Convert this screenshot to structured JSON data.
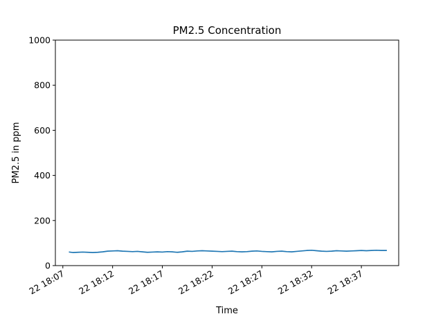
{
  "chart_data": {
    "type": "line",
    "title": "PM2.5 Concentration",
    "xlabel": "Time",
    "ylabel": "PM2.5 in ppm",
    "ylim": [
      0,
      1000
    ],
    "xlim": [
      "22 18:06:15",
      "22 18:40:45"
    ],
    "yticks": [
      0,
      200,
      400,
      600,
      800,
      1000
    ],
    "xticks": [
      {
        "label": "22 18:07",
        "t": "22 18:07:00"
      },
      {
        "label": "22 18:12",
        "t": "22 18:12:00"
      },
      {
        "label": "22 18:17",
        "t": "22 18:17:00"
      },
      {
        "label": "22 18:22",
        "t": "22 18:22:00"
      },
      {
        "label": "22 18:27",
        "t": "22 18:27:00"
      },
      {
        "label": "22 18:32",
        "t": "22 18:32:00"
      },
      {
        "label": "22 18:37",
        "t": "22 18:37:00"
      }
    ],
    "grid": false,
    "series": [
      {
        "color": "#1f77b4",
        "points": [
          [
            "22 18:07:40",
            60
          ],
          [
            "22 18:08:00",
            58
          ],
          [
            "22 18:08:30",
            59
          ],
          [
            "22 18:09:00",
            60
          ],
          [
            "22 18:09:30",
            59
          ],
          [
            "22 18:10:00",
            58
          ],
          [
            "22 18:10:30",
            59
          ],
          [
            "22 18:11:00",
            61
          ],
          [
            "22 18:11:30",
            64
          ],
          [
            "22 18:12:00",
            65
          ],
          [
            "22 18:12:30",
            66
          ],
          [
            "22 18:13:00",
            64
          ],
          [
            "22 18:13:30",
            63
          ],
          [
            "22 18:14:00",
            62
          ],
          [
            "22 18:14:30",
            63
          ],
          [
            "22 18:15:00",
            61
          ],
          [
            "22 18:15:30",
            59
          ],
          [
            "22 18:16:00",
            60
          ],
          [
            "22 18:16:30",
            61
          ],
          [
            "22 18:17:00",
            60
          ],
          [
            "22 18:17:30",
            62
          ],
          [
            "22 18:18:00",
            61
          ],
          [
            "22 18:18:30",
            59
          ],
          [
            "22 18:19:00",
            61
          ],
          [
            "22 18:19:30",
            64
          ],
          [
            "22 18:20:00",
            63
          ],
          [
            "22 18:20:30",
            65
          ],
          [
            "22 18:21:00",
            66
          ],
          [
            "22 18:21:30",
            65
          ],
          [
            "22 18:22:00",
            64
          ],
          [
            "22 18:22:30",
            63
          ],
          [
            "22 18:23:00",
            62
          ],
          [
            "22 18:23:30",
            63
          ],
          [
            "22 18:24:00",
            64
          ],
          [
            "22 18:24:30",
            62
          ],
          [
            "22 18:25:00",
            61
          ],
          [
            "22 18:25:30",
            62
          ],
          [
            "22 18:26:00",
            64
          ],
          [
            "22 18:26:30",
            65
          ],
          [
            "22 18:27:00",
            63
          ],
          [
            "22 18:27:30",
            62
          ],
          [
            "22 18:28:00",
            61
          ],
          [
            "22 18:28:30",
            63
          ],
          [
            "22 18:29:00",
            64
          ],
          [
            "22 18:29:30",
            62
          ],
          [
            "22 18:30:00",
            61
          ],
          [
            "22 18:30:30",
            63
          ],
          [
            "22 18:31:00",
            65
          ],
          [
            "22 18:31:30",
            67
          ],
          [
            "22 18:32:00",
            68
          ],
          [
            "22 18:32:30",
            66
          ],
          [
            "22 18:33:00",
            64
          ],
          [
            "22 18:33:30",
            63
          ],
          [
            "22 18:34:00",
            64
          ],
          [
            "22 18:34:30",
            66
          ],
          [
            "22 18:35:00",
            65
          ],
          [
            "22 18:35:30",
            64
          ],
          [
            "22 18:36:00",
            65
          ],
          [
            "22 18:36:30",
            66
          ],
          [
            "22 18:37:00",
            67
          ],
          [
            "22 18:37:30",
            66
          ],
          [
            "22 18:38:00",
            67
          ],
          [
            "22 18:38:30",
            68
          ],
          [
            "22 18:39:00",
            67
          ],
          [
            "22 18:39:30",
            67
          ]
        ]
      }
    ]
  }
}
